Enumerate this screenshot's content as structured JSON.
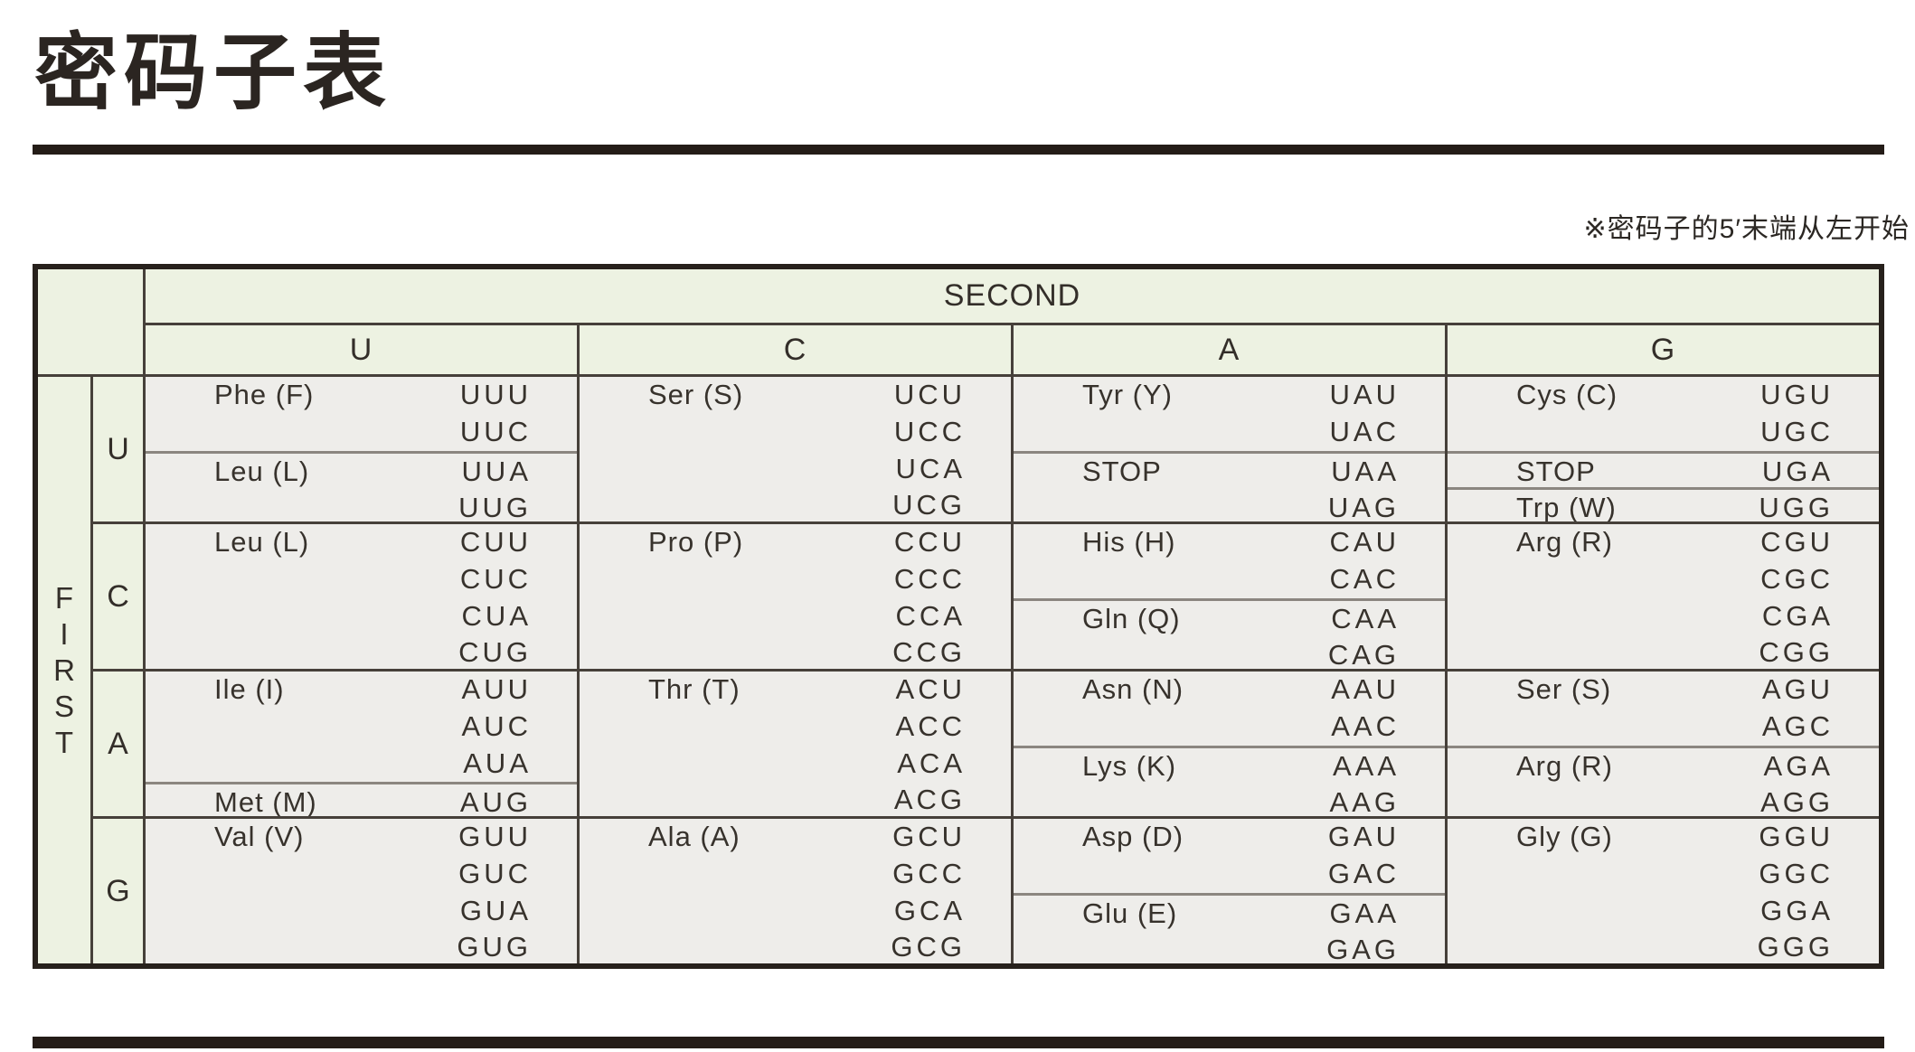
{
  "title": "密码子表",
  "note": "※密码子的5′末端从左开始",
  "table": {
    "second_label": "SECOND",
    "first_label": "FIRST",
    "first_letters": [
      "F",
      "I",
      "R",
      "S",
      "T"
    ],
    "col_labels": [
      "U",
      "C",
      "A",
      "G"
    ],
    "rows": [
      {
        "label": "U",
        "cells": [
          {
            "groups": [
              {
                "aa": "Phe (F)",
                "codons": [
                  "UUU",
                  "UUC"
                ]
              },
              {
                "aa": "Leu (L)",
                "codons": [
                  "UUA",
                  "UUG"
                ]
              }
            ]
          },
          {
            "groups": [
              {
                "aa": "Ser (S)",
                "codons": [
                  "UCU",
                  "UCC",
                  "UCA",
                  "UCG"
                ]
              }
            ]
          },
          {
            "groups": [
              {
                "aa": "Tyr (Y)",
                "codons": [
                  "UAU",
                  "UAC"
                ]
              },
              {
                "aa": "STOP",
                "codons": [
                  "UAA",
                  "UAG"
                ]
              }
            ]
          },
          {
            "groups": [
              {
                "aa": "Cys (C)",
                "codons": [
                  "UGU",
                  "UGC"
                ]
              },
              {
                "aa": "STOP",
                "codons": [
                  "UGA"
                ]
              },
              {
                "aa": "Trp (W)",
                "codons": [
                  "UGG"
                ]
              }
            ]
          }
        ]
      },
      {
        "label": "C",
        "cells": [
          {
            "groups": [
              {
                "aa": "Leu (L)",
                "codons": [
                  "CUU",
                  "CUC",
                  "CUA",
                  "CUG"
                ]
              }
            ]
          },
          {
            "groups": [
              {
                "aa": "Pro (P)",
                "codons": [
                  "CCU",
                  "CCC",
                  "CCA",
                  "CCG"
                ]
              }
            ]
          },
          {
            "groups": [
              {
                "aa": "His (H)",
                "codons": [
                  "CAU",
                  "CAC"
                ]
              },
              {
                "aa": "Gln (Q)",
                "codons": [
                  "CAA",
                  "CAG"
                ]
              }
            ]
          },
          {
            "groups": [
              {
                "aa": "Arg (R)",
                "codons": [
                  "CGU",
                  "CGC",
                  "CGA",
                  "CGG"
                ]
              }
            ]
          }
        ]
      },
      {
        "label": "A",
        "cells": [
          {
            "groups": [
              {
                "aa": "Ile (I)",
                "codons": [
                  "AUU",
                  "AUC",
                  "AUA"
                ]
              },
              {
                "aa": "Met (M)",
                "codons": [
                  "AUG"
                ]
              }
            ]
          },
          {
            "groups": [
              {
                "aa": "Thr (T)",
                "codons": [
                  "ACU",
                  "ACC",
                  "ACA",
                  "ACG"
                ]
              }
            ]
          },
          {
            "groups": [
              {
                "aa": "Asn (N)",
                "codons": [
                  "AAU",
                  "AAC"
                ]
              },
              {
                "aa": "Lys (K)",
                "codons": [
                  "AAA",
                  "AAG"
                ]
              }
            ]
          },
          {
            "groups": [
              {
                "aa": "Ser (S)",
                "codons": [
                  "AGU",
                  "AGC"
                ]
              },
              {
                "aa": "Arg (R)",
                "codons": [
                  "AGA",
                  "AGG"
                ]
              }
            ]
          }
        ]
      },
      {
        "label": "G",
        "cells": [
          {
            "groups": [
              {
                "aa": "Val (V)",
                "codons": [
                  "GUU",
                  "GUC",
                  "GUA",
                  "GUG"
                ]
              }
            ]
          },
          {
            "groups": [
              {
                "aa": "Ala (A)",
                "codons": [
                  "GCU",
                  "GCC",
                  "GCA",
                  "GCG"
                ]
              }
            ]
          },
          {
            "groups": [
              {
                "aa": "Asp (D)",
                "codons": [
                  "GAU",
                  "GAC"
                ]
              },
              {
                "aa": "Glu (E)",
                "codons": [
                  "GAA",
                  "GAG"
                ]
              }
            ]
          },
          {
            "groups": [
              {
                "aa": "Gly (G)",
                "codons": [
                  "GGU",
                  "GGC",
                  "GGA",
                  "GGG"
                ]
              }
            ]
          }
        ]
      }
    ]
  },
  "colors": {
    "header_green": "#edf2e2",
    "cell_gray": "#eeedea",
    "grid_line": "#46403a",
    "sub_divider": "#8b8680",
    "outer_border": "#27211c",
    "rule": "#241c17",
    "text": "#37322c"
  }
}
